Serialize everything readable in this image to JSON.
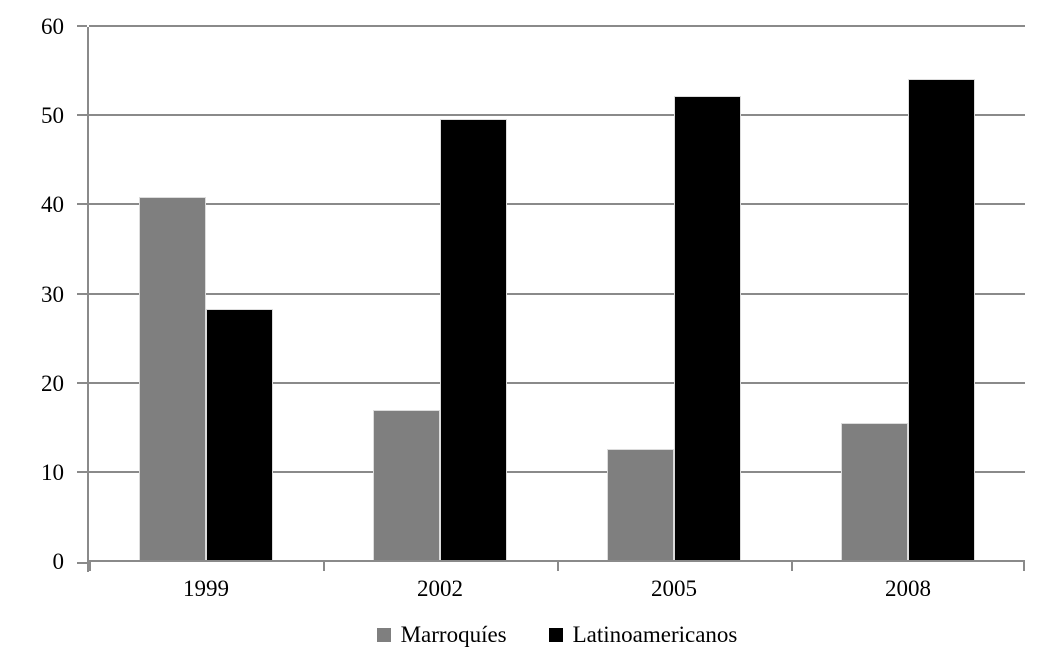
{
  "chart_data": {
    "type": "bar",
    "title": "",
    "xlabel": "",
    "ylabel": "",
    "categories": [
      "1999",
      "2002",
      "2005",
      "2008"
    ],
    "series": [
      {
        "name": "Marroquíes",
        "color": "#7f7f7f",
        "values": [
          40.7,
          16.8,
          12.5,
          15.4
        ]
      },
      {
        "name": "Latinoamericanos",
        "color": "#000000",
        "values": [
          28.2,
          49.5,
          52,
          54
        ]
      }
    ],
    "ylim": [
      0,
      60
    ],
    "ytick_interval": 10,
    "ytick_labels": [
      "0",
      "10",
      "20",
      "30",
      "40",
      "50",
      "60"
    ],
    "grid": "horizontal gridlines on",
    "legend_position": "bottom"
  },
  "colors": {
    "background": "#ffffff",
    "gridline": "#8a8a8a",
    "axis": "#8a8a8a",
    "text": "#000000",
    "series_gray": "#7f7f7f",
    "series_black": "#000000"
  }
}
